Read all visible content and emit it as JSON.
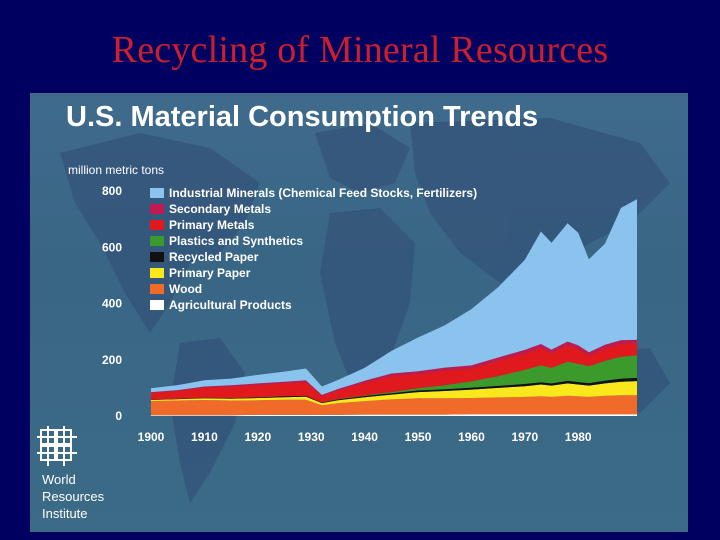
{
  "slide": {
    "title": "Recycling of Mineral Resources"
  },
  "chart_data": {
    "type": "area",
    "stacked": true,
    "title": "U.S. Material Consumption Trends",
    "ylabel": "million metric tons",
    "ylim": [
      0,
      800
    ],
    "xlim": [
      1900,
      1991
    ],
    "yticks": [
      "0",
      "200",
      "400",
      "600",
      "800"
    ],
    "xticks": [
      "1900",
      "1910",
      "1920",
      "1930",
      "1940",
      "1950",
      "1960",
      "1970",
      "1980"
    ],
    "legend_position": "top-left",
    "grid": false,
    "x": [
      1900,
      1905,
      1910,
      1915,
      1920,
      1925,
      1929,
      1932,
      1935,
      1940,
      1945,
      1950,
      1955,
      1960,
      1965,
      1970,
      1973,
      1975,
      1978,
      1980,
      1982,
      1985,
      1988,
      1991
    ],
    "series": [
      {
        "name": "Agricultural Products",
        "color": "#ffffff",
        "values": [
          3,
          3,
          3,
          3,
          4,
          4,
          4,
          4,
          4,
          5,
          5,
          5,
          5,
          6,
          6,
          6,
          6,
          6,
          6,
          6,
          6,
          6,
          6,
          6
        ]
      },
      {
        "name": "Wood",
        "color": "#f06a2a",
        "values": [
          50,
          52,
          54,
          52,
          52,
          54,
          54,
          34,
          42,
          48,
          54,
          58,
          58,
          58,
          60,
          62,
          64,
          62,
          66,
          64,
          62,
          66,
          68,
          68
        ]
      },
      {
        "name": "Primary Paper",
        "color": "#f8e81c",
        "values": [
          4,
          5,
          6,
          7,
          8,
          9,
          11,
          8,
          10,
          14,
          17,
          22,
          26,
          30,
          34,
          38,
          42,
          40,
          44,
          42,
          40,
          44,
          48,
          50
        ]
      },
      {
        "name": "Recycled Paper",
        "color": "#111111",
        "values": [
          1,
          1,
          2,
          2,
          2,
          3,
          3,
          2,
          3,
          4,
          5,
          6,
          6,
          7,
          7,
          8,
          8,
          8,
          9,
          9,
          9,
          10,
          11,
          12
        ]
      },
      {
        "name": "Plastics and Synthetics",
        "color": "#3c9a2c",
        "values": [
          0,
          0,
          0,
          0,
          0,
          0,
          0,
          0,
          1,
          2,
          4,
          8,
          14,
          22,
          35,
          50,
          60,
          55,
          68,
          65,
          60,
          70,
          78,
          80
        ]
      },
      {
        "name": "Primary Metals",
        "color": "#e0191c",
        "values": [
          24,
          28,
          36,
          40,
          44,
          46,
          48,
          22,
          30,
          44,
          56,
          50,
          52,
          46,
          54,
          58,
          62,
          52,
          58,
          52,
          38,
          44,
          46,
          42
        ]
      },
      {
        "name": "Secondary Metals",
        "color": "#c01a52",
        "values": [
          3,
          3,
          4,
          5,
          6,
          6,
          7,
          5,
          6,
          8,
          10,
          10,
          11,
          11,
          12,
          13,
          14,
          13,
          14,
          13,
          12,
          13,
          13,
          13
        ]
      },
      {
        "name": "Industrial Minerals (Chemical Feed Stocks, Fertilizers)",
        "color": "#8ac4ee",
        "values": [
          14,
          18,
          22,
          24,
          30,
          36,
          42,
          30,
          32,
          46,
          80,
          120,
          150,
          200,
          250,
          320,
          400,
          380,
          420,
          400,
          330,
          360,
          470,
          500
        ]
      }
    ]
  },
  "logo": {
    "lines": [
      "World",
      "Resources",
      "Institute"
    ]
  }
}
